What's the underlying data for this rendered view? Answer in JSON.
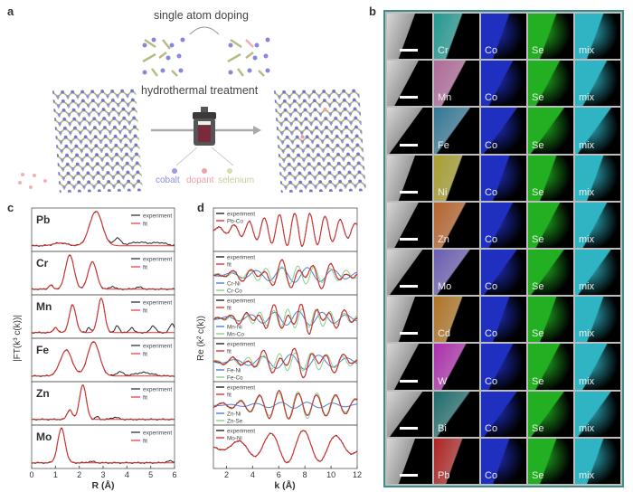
{
  "panel_labels": {
    "a": "a",
    "b": "b",
    "c": "c",
    "d": "d"
  },
  "panel_a": {
    "top_text": "single atom doping",
    "middle_text": "hydrothermal treatment",
    "legend": [
      {
        "label": "cobalt",
        "color": "#8f8fe0"
      },
      {
        "label": "dopant",
        "color": "#f0a0a8"
      },
      {
        "label": "selenium",
        "color": "#d8dcae"
      }
    ]
  },
  "panel_b": {
    "columns": [
      "Co",
      "Se",
      "mix"
    ],
    "rows": [
      {
        "element": "Cr",
        "color": "#1f9a92"
      },
      {
        "element": "Mn",
        "color": "#b06a9a"
      },
      {
        "element": "Fe",
        "color": "#2f7796"
      },
      {
        "element": "Ni",
        "color": "#a89f2c"
      },
      {
        "element": "Zn",
        "color": "#b8622a"
      },
      {
        "element": "Mo",
        "color": "#6a5cb4"
      },
      {
        "element": "Cd",
        "color": "#b07422"
      },
      {
        "element": "W",
        "color": "#b02cb0"
      },
      {
        "element": "Bi",
        "color": "#1c6c6c"
      },
      {
        "element": "Pb",
        "color": "#b02222"
      }
    ],
    "co_color": "#1f2fc0",
    "se_color": "#22b022",
    "mix_color": "#2fb4c4"
  },
  "chart_data": [
    {
      "type": "line",
      "panel": "c",
      "xlabel": "R (Å)",
      "ylabel": "|FT(k³ c(k))|",
      "xlim": [
        0,
        6
      ],
      "xticks": [
        "0",
        "1",
        "2",
        "3",
        "4",
        "5",
        "6"
      ],
      "legend": [
        "experiment",
        "fit"
      ],
      "colors": {
        "experiment": "#222222",
        "fit": "#e8312f"
      },
      "panels": [
        {
          "label": "Pb",
          "peaks": [
            [
              2.7,
              1.0,
              0.38
            ],
            [
              1.2,
              0.08,
              0.4
            ]
          ],
          "exp_extra": [
            [
              3.6,
              0.22,
              0.18
            ],
            [
              4.5,
              0.1,
              0.6
            ],
            [
              5.4,
              0.08,
              0.4
            ]
          ]
        },
        {
          "label": "Cr",
          "peaks": [
            [
              1.6,
              1.0,
              0.25
            ],
            [
              2.55,
              0.8,
              0.25
            ],
            [
              0.8,
              0.12,
              0.12
            ]
          ],
          "exp_extra": [
            [
              3.4,
              0.08,
              0.15
            ],
            [
              4.5,
              0.06,
              0.2
            ]
          ]
        },
        {
          "label": "Mn",
          "peaks": [
            [
              1.72,
              0.8,
              0.2
            ],
            [
              2.92,
              1.0,
              0.2
            ],
            [
              1.0,
              0.15,
              0.12
            ]
          ],
          "exp_extra": [
            [
              2.4,
              0.15,
              0.1
            ],
            [
              3.6,
              0.2,
              0.12
            ],
            [
              4.2,
              0.15,
              0.12
            ],
            [
              5.1,
              0.2,
              0.15
            ],
            [
              5.9,
              0.25,
              0.15
            ]
          ]
        },
        {
          "label": "Fe",
          "peaks": [
            [
              1.45,
              0.75,
              0.35
            ],
            [
              2.6,
              1.0,
              0.35
            ]
          ],
          "exp_extra": [
            [
              3.7,
              0.12,
              0.2
            ],
            [
              4.7,
              0.1,
              0.5
            ]
          ]
        },
        {
          "label": "Zn",
          "peaks": [
            [
              2.15,
              1.0,
              0.2
            ],
            [
              1.6,
              0.28,
              0.15
            ]
          ],
          "exp_extra": [
            [
              2.75,
              0.08,
              0.1
            ],
            [
              3.5,
              0.06,
              0.2
            ]
          ]
        },
        {
          "label": "Mo",
          "peaks": [
            [
              1.25,
              1.0,
              0.22
            ]
          ],
          "exp_extra": [
            [
              2.5,
              0.04,
              0.2
            ],
            [
              5.8,
              0.05,
              0.2
            ]
          ]
        }
      ]
    },
    {
      "type": "line",
      "panel": "d",
      "xlabel": "k (Å)",
      "ylabel": "Re (k² c(k))",
      "xlim": [
        1,
        12
      ],
      "xticks": [
        "2",
        "4",
        "6",
        "8",
        "10",
        "12"
      ],
      "colors": {
        "experiment": "#222222",
        "fit": "#e8312f",
        "path1": "#4a80d8",
        "path2": "#86d296"
      },
      "panels": [
        {
          "legend": [
            "experiment",
            "Pb-Co"
          ],
          "paths": [
            {
              "R": 2.7,
              "amp": 1.0,
              "phase": 0.3
            }
          ],
          "show_paths": false
        },
        {
          "legend": [
            "experiment",
            "fit",
            "Cr-Ni",
            "Cr-Co"
          ],
          "paths": [
            {
              "R": 1.6,
              "amp": 0.5,
              "phase": 0.5
            },
            {
              "R": 2.55,
              "amp": 0.6,
              "phase": 1.2
            }
          ],
          "show_paths": true
        },
        {
          "legend": [
            "experiment",
            "fit",
            "Mn-Ni",
            "Mn-Co"
          ],
          "paths": [
            {
              "R": 1.72,
              "amp": 0.45,
              "phase": 0.9
            },
            {
              "R": 2.92,
              "amp": 0.6,
              "phase": 0.2
            }
          ],
          "show_paths": true
        },
        {
          "legend": [
            "experiment",
            "fit",
            "Fe-Ni",
            "Fe-Co"
          ],
          "paths": [
            {
              "R": 1.45,
              "amp": 0.5,
              "phase": 0.4
            },
            {
              "R": 2.6,
              "amp": 0.6,
              "phase": 1.5
            }
          ],
          "show_paths": true
        },
        {
          "legend": [
            "experiment",
            "fit",
            "Zn-Ni",
            "Zn-Se"
          ],
          "paths": [
            {
              "R": 1.6,
              "amp": 0.2,
              "phase": 0.6
            },
            {
              "R": 2.15,
              "amp": 0.9,
              "phase": 0.9
            }
          ],
          "show_paths": true
        },
        {
          "legend": [
            "experiment",
            "Mo-Ni"
          ],
          "paths": [
            {
              "R": 1.25,
              "amp": 1.0,
              "phase": 0.7
            }
          ],
          "show_paths": false
        }
      ]
    }
  ]
}
